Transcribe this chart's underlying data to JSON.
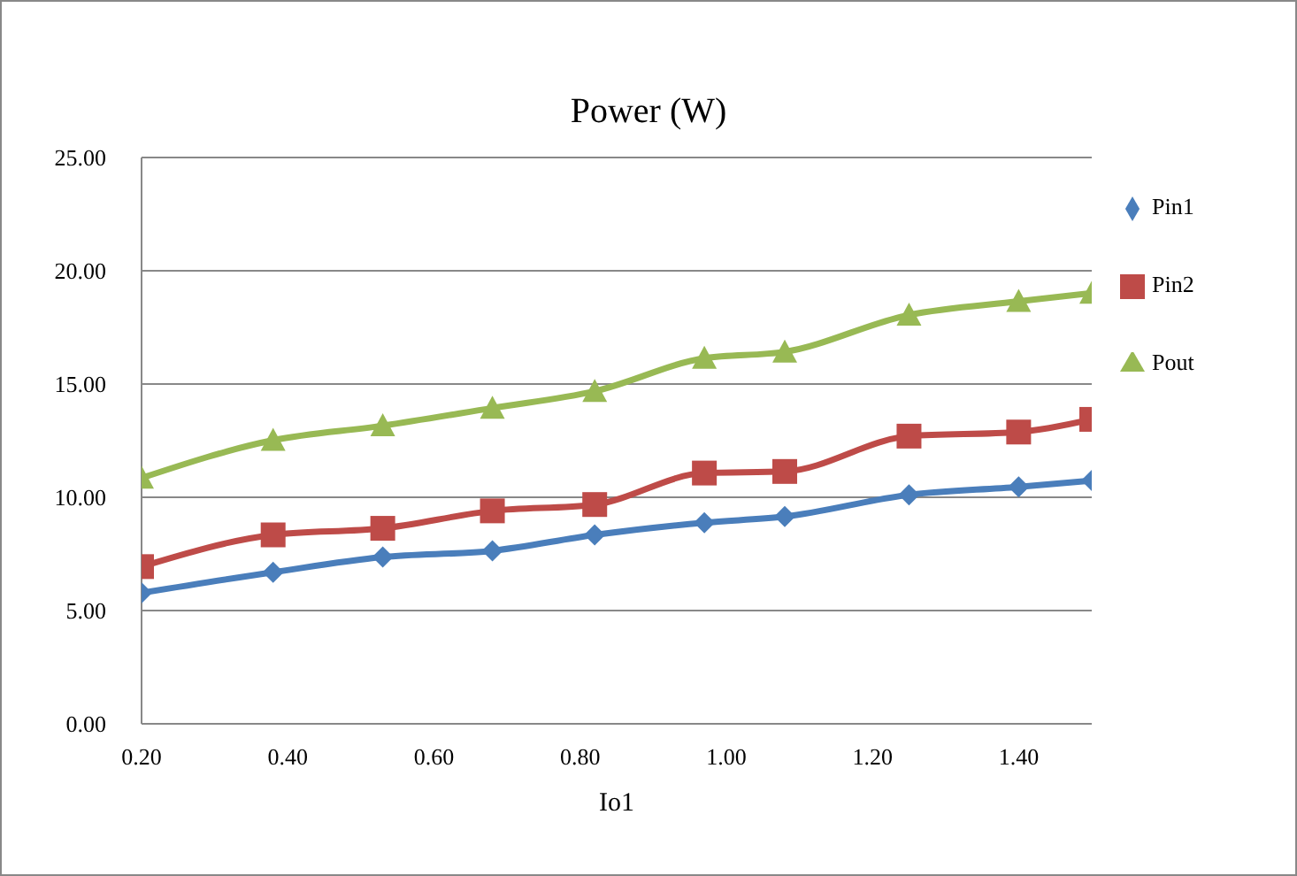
{
  "chart_data": {
    "type": "line",
    "title": "Power (W)",
    "xlabel": "Io1",
    "x": [
      0.2,
      0.38,
      0.53,
      0.68,
      0.82,
      0.97,
      1.08,
      1.25,
      1.4,
      1.5
    ],
    "series": [
      {
        "name": "Pin1",
        "color": "#4a7ebb",
        "marker": "diamond",
        "values": [
          5.78,
          6.69,
          7.36,
          7.64,
          8.34,
          8.88,
          9.15,
          10.11,
          10.46,
          10.74
        ]
      },
      {
        "name": "Pin2",
        "color": "#be4b48",
        "marker": "square",
        "values": [
          6.94,
          8.34,
          8.63,
          9.4,
          9.68,
          11.07,
          11.14,
          12.7,
          12.88,
          13.44
        ]
      },
      {
        "name": "Pout",
        "color": "#98b954",
        "marker": "triangle",
        "values": [
          10.85,
          12.52,
          13.16,
          13.94,
          14.68,
          16.14,
          16.42,
          18.05,
          18.65,
          19.01
        ]
      }
    ],
    "xlim": [
      0.2,
      1.5
    ],
    "xticks": [
      {
        "value": 0.2,
        "label": "0.20"
      },
      {
        "value": 0.4,
        "label": "0.40"
      },
      {
        "value": 0.6,
        "label": "0.60"
      },
      {
        "value": 0.8,
        "label": "0.80"
      },
      {
        "value": 1.0,
        "label": "1.00"
      },
      {
        "value": 1.2,
        "label": "1.20"
      },
      {
        "value": 1.4,
        "label": "1.40"
      }
    ],
    "ylim": [
      0,
      25
    ],
    "yticks": [
      {
        "value": 0,
        "label": "0.00"
      },
      {
        "value": 5,
        "label": "5.00"
      },
      {
        "value": 10,
        "label": "10.00"
      },
      {
        "value": 15,
        "label": "15.00"
      },
      {
        "value": 20,
        "label": "20.00"
      },
      {
        "value": 25,
        "label": "25.00"
      }
    ],
    "grid": "y",
    "legend": "right"
  }
}
